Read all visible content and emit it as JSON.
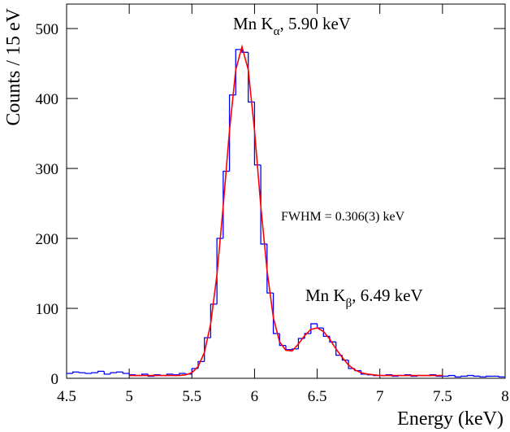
{
  "chart_data": {
    "type": "histogram",
    "xlabel": "Energy (keV)",
    "ylabel": "Counts / 15 eV",
    "xlim": [
      4.5,
      8.0
    ],
    "ylim": [
      0,
      535
    ],
    "xticks": [
      4.5,
      5,
      5.5,
      6,
      6.5,
      7,
      7.5,
      8
    ],
    "yticks": [
      0,
      100,
      200,
      300,
      400,
      500
    ],
    "color": "#0000ff",
    "bins": [
      4.5,
      4.55,
      4.6,
      4.65,
      4.7,
      4.75,
      4.8,
      4.85,
      4.9,
      4.95,
      5.0,
      5.05,
      5.1,
      5.15,
      5.2,
      5.25,
      5.3,
      5.35,
      5.4,
      5.45,
      5.5,
      5.55,
      5.6,
      5.65,
      5.7,
      5.75,
      5.8,
      5.85,
      5.9,
      5.95,
      6.0,
      6.05,
      6.1,
      6.15,
      6.2,
      6.25,
      6.3,
      6.35,
      6.4,
      6.45,
      6.5,
      6.55,
      6.6,
      6.65,
      6.7,
      6.75,
      6.8,
      6.85,
      6.9,
      6.95,
      7.0,
      7.05,
      7.1,
      7.15,
      7.2,
      7.25,
      7.3,
      7.35,
      7.4,
      7.45,
      7.5,
      7.55,
      7.6,
      7.65,
      7.7,
      7.75,
      7.8,
      7.85,
      7.9,
      7.95,
      8.0
    ],
    "values": [
      7,
      9,
      8,
      7,
      8,
      10,
      6,
      8,
      9,
      7,
      5,
      4,
      6,
      3,
      5,
      4,
      6,
      5,
      7,
      6,
      14,
      24,
      58,
      106,
      200,
      296,
      405,
      470,
      466,
      395,
      305,
      192,
      122,
      64,
      47,
      41,
      42,
      57,
      64,
      78,
      72,
      60,
      52,
      33,
      26,
      14,
      11,
      6,
      5,
      4,
      4,
      5,
      3,
      4,
      5,
      3,
      4,
      4,
      5,
      3,
      3,
      4,
      2,
      3,
      4,
      3,
      2,
      3,
      3,
      2
    ],
    "fit": {
      "color": "#ff0000",
      "x": [
        5.0,
        5.05,
        5.1,
        5.15,
        5.2,
        5.25,
        5.3,
        5.35,
        5.4,
        5.45,
        5.5,
        5.55,
        5.6,
        5.65,
        5.7,
        5.75,
        5.8,
        5.85,
        5.9,
        5.95,
        6.0,
        6.05,
        6.1,
        6.15,
        6.2,
        6.25,
        6.3,
        6.35,
        6.4,
        6.45,
        6.5,
        6.55,
        6.6,
        6.65,
        6.7,
        6.75,
        6.8,
        6.85,
        6.9,
        6.95,
        7.0,
        7.05,
        7.1,
        7.15,
        7.2,
        7.25,
        7.3,
        7.35,
        7.4,
        7.45,
        7.5
      ],
      "values": [
        4,
        4,
        4,
        4,
        4,
        4,
        4,
        4,
        4,
        5,
        8,
        17,
        37,
        78,
        148,
        246,
        354,
        441,
        474,
        441,
        354,
        246,
        154,
        87,
        52,
        40,
        39,
        49,
        61,
        70,
        72,
        67,
        56,
        42,
        30,
        19,
        12,
        8,
        6,
        5,
        4,
        4,
        4,
        4,
        4,
        4,
        4,
        4,
        4,
        4,
        4
      ]
    },
    "annotations": [
      {
        "text": "Mn K",
        "sub": "α",
        "rest": ", 5.90 keV"
      },
      {
        "text": "Mn K",
        "sub": "β",
        "rest": ", 6.49 keV"
      },
      {
        "text": "FWHM = 0.306(3) keV"
      }
    ]
  }
}
